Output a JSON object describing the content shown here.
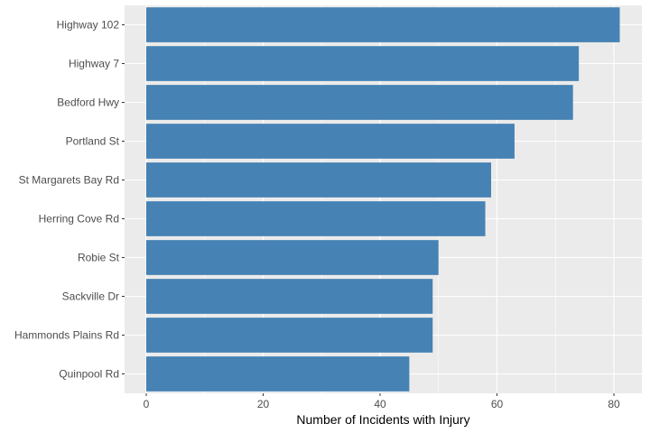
{
  "chart_data": {
    "type": "bar",
    "orientation": "horizontal",
    "categories": [
      "Highway 102",
      "Highway 7",
      "Bedford Hwy",
      "Portland St",
      "St Margarets Bay Rd",
      "Herring Cove Rd",
      "Robie St",
      "Sackville Dr",
      "Hammonds Plains Rd",
      "Quinpool Rd"
    ],
    "values": [
      81,
      74,
      73,
      63,
      59,
      58,
      50,
      49,
      49,
      45
    ],
    "xlabel": "Number of Incidents with Injury",
    "ylabel": "",
    "title": "",
    "xlim": [
      0,
      85
    ],
    "x_ticks": [
      "0",
      "20",
      "40",
      "60",
      "80"
    ],
    "x_tick_values": [
      0,
      20,
      40,
      60,
      80
    ],
    "grid": true,
    "colors": {
      "bar": "#4682b4",
      "panel_background": "#ebebeb",
      "grid_major": "#ffffff",
      "tick_text": "#4d4d4d",
      "tick_mark": "#333333"
    }
  }
}
